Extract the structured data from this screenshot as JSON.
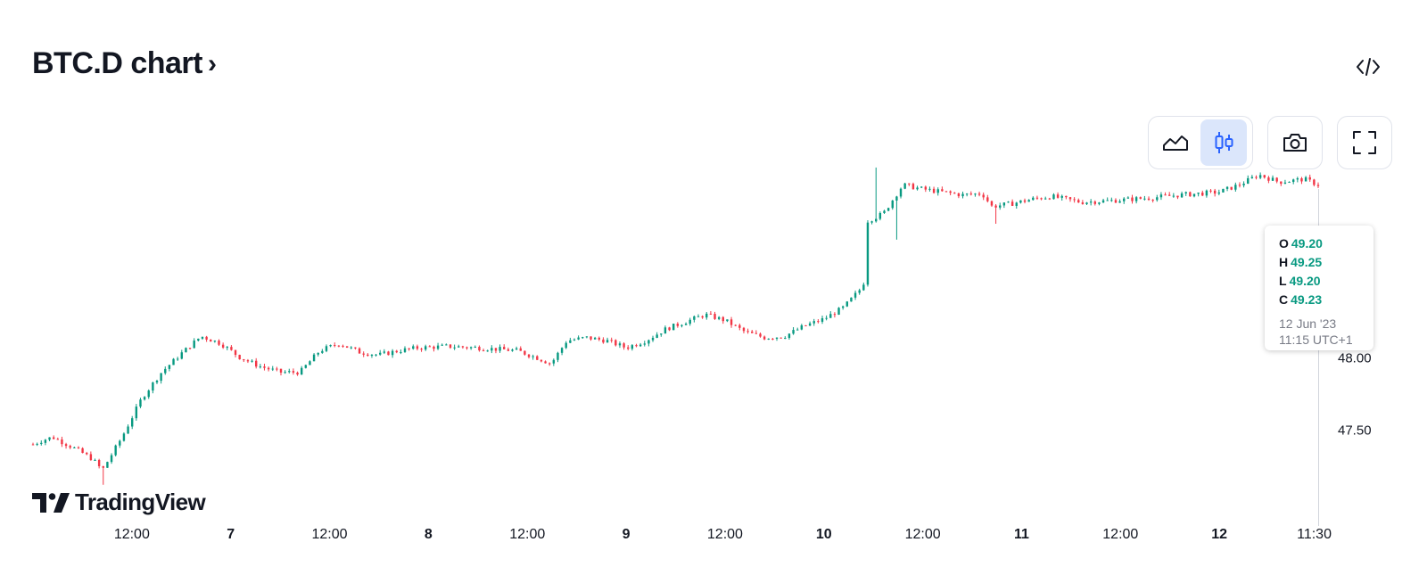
{
  "header": {
    "title": "BTC.D chart",
    "chevron": "›"
  },
  "toolbar": {
    "buttons": [
      {
        "name": "area-chart",
        "icon": "area-chart-icon",
        "active": false
      },
      {
        "name": "candles",
        "icon": "candlestick-icon",
        "active": true
      },
      {
        "name": "snapshot",
        "icon": "camera-icon",
        "active": false
      },
      {
        "name": "fullscreen",
        "icon": "fullscreen-icon",
        "active": false
      }
    ],
    "embed_icon": "code-icon"
  },
  "tooltip": {
    "o_label": "O",
    "o_value": "49.20",
    "h_label": "H",
    "h_value": "49.25",
    "l_label": "L",
    "l_value": "49.20",
    "c_label": "C",
    "c_value": "49.23",
    "date": "12 Jun '23",
    "time": "11:15 UTC+1"
  },
  "brand": {
    "logo_text": "TradingView"
  },
  "colors": {
    "up": "#089981",
    "down": "#F23645",
    "active_bg": "#dbe6fb",
    "active_icon": "#2962ff",
    "text": "#131722"
  },
  "chart_data": {
    "type": "candlestick",
    "symbol": "BTC.D",
    "x_ticks": [
      {
        "label": "12:00",
        "t": 0.5,
        "bold": false
      },
      {
        "label": "7",
        "t": 1.0,
        "bold": true
      },
      {
        "label": "12:00",
        "t": 1.5,
        "bold": false
      },
      {
        "label": "8",
        "t": 2.0,
        "bold": true
      },
      {
        "label": "12:00",
        "t": 2.5,
        "bold": false
      },
      {
        "label": "9",
        "t": 3.0,
        "bold": true
      },
      {
        "label": "12:00",
        "t": 3.5,
        "bold": false
      },
      {
        "label": "10",
        "t": 4.0,
        "bold": true
      },
      {
        "label": "12:00",
        "t": 4.5,
        "bold": false
      },
      {
        "label": "11",
        "t": 5.0,
        "bold": true
      },
      {
        "label": "12:00",
        "t": 5.5,
        "bold": false
      },
      {
        "label": "12",
        "t": 6.0,
        "bold": true
      },
      {
        "label": "11:30",
        "t": 6.48,
        "bold": false
      }
    ],
    "y_ticks": [
      {
        "label": "48.00",
        "value": 48.0
      },
      {
        "label": "47.50",
        "value": 47.5
      }
    ],
    "x_range": [
      0.0,
      6.5
    ],
    "y_range": [
      47.1,
      49.4
    ],
    "grid": false,
    "close_path": [
      [
        0.0,
        47.4
      ],
      [
        0.05,
        47.43
      ],
      [
        0.1,
        47.45
      ],
      [
        0.2,
        47.38
      ],
      [
        0.3,
        47.3
      ],
      [
        0.35,
        47.22
      ],
      [
        0.45,
        47.45
      ],
      [
        0.55,
        47.72
      ],
      [
        0.65,
        47.9
      ],
      [
        0.75,
        48.03
      ],
      [
        0.85,
        48.15
      ],
      [
        0.95,
        48.1
      ],
      [
        1.05,
        48.0
      ],
      [
        1.15,
        47.94
      ],
      [
        1.25,
        47.9
      ],
      [
        1.35,
        47.9
      ],
      [
        1.45,
        48.05
      ],
      [
        1.55,
        48.1
      ],
      [
        1.65,
        48.04
      ],
      [
        1.75,
        48.02
      ],
      [
        1.85,
        48.05
      ],
      [
        1.95,
        48.07
      ],
      [
        2.1,
        48.08
      ],
      [
        2.25,
        48.07
      ],
      [
        2.35,
        48.06
      ],
      [
        2.45,
        48.05
      ],
      [
        2.55,
        48.0
      ],
      [
        2.62,
        47.96
      ],
      [
        2.7,
        48.12
      ],
      [
        2.8,
        48.14
      ],
      [
        2.9,
        48.12
      ],
      [
        3.0,
        48.07
      ],
      [
        3.1,
        48.12
      ],
      [
        3.2,
        48.2
      ],
      [
        3.3,
        48.25
      ],
      [
        3.4,
        48.3
      ],
      [
        3.5,
        48.26
      ],
      [
        3.6,
        48.18
      ],
      [
        3.7,
        48.14
      ],
      [
        3.8,
        48.15
      ],
      [
        3.9,
        48.22
      ],
      [
        4.0,
        48.27
      ],
      [
        4.1,
        48.35
      ],
      [
        4.2,
        48.5
      ],
      [
        4.22,
        48.95
      ],
      [
        4.3,
        49.0
      ],
      [
        4.4,
        49.2
      ],
      [
        4.5,
        49.17
      ],
      [
        4.6,
        49.15
      ],
      [
        4.7,
        49.13
      ],
      [
        4.8,
        49.14
      ],
      [
        4.85,
        49.05
      ],
      [
        4.95,
        49.07
      ],
      [
        5.05,
        49.1
      ],
      [
        5.15,
        49.12
      ],
      [
        5.3,
        49.08
      ],
      [
        5.45,
        49.09
      ],
      [
        5.55,
        49.1
      ],
      [
        5.65,
        49.11
      ],
      [
        5.8,
        49.13
      ],
      [
        5.9,
        49.14
      ],
      [
        6.0,
        49.15
      ],
      [
        6.1,
        49.2
      ],
      [
        6.2,
        49.27
      ],
      [
        6.3,
        49.22
      ],
      [
        6.37,
        49.23
      ],
      [
        6.43,
        49.24
      ],
      [
        6.5,
        49.2
      ]
    ],
    "spikes": [
      {
        "t": 0.35,
        "low": 47.12
      },
      {
        "t": 4.26,
        "high": 49.32
      },
      {
        "t": 4.36,
        "low": 48.82
      },
      {
        "t": 4.87,
        "low": 48.93
      }
    ]
  }
}
